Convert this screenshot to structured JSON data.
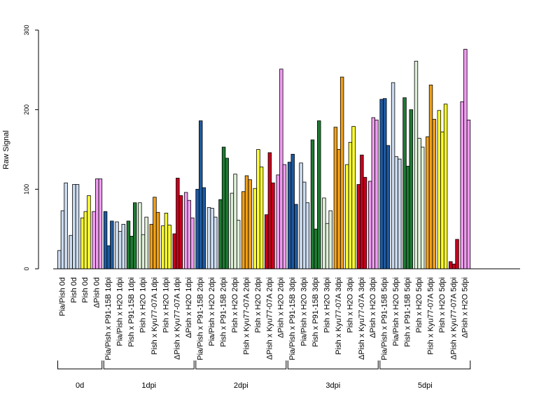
{
  "chart_data": {
    "type": "bar",
    "title": "",
    "xlabel": "",
    "ylabel": "Raw Signal",
    "ylim": [
      0,
      300
    ],
    "yticks": [
      0,
      100,
      200,
      300
    ],
    "grid": false,
    "legend": "none",
    "colors": {
      "Pia/Pish": "#ccdcf0",
      "Pish": "#ffff33",
      "ΔPish": "#f09cf0",
      "Pia/Pish x P91-15B": "#1f5aa0",
      "Pia/Pish x H2O": "#ccdcf0",
      "Pish x P91-15B": "#1e7a32",
      "Pish x H2O": "#dff0d8",
      "Pish x Kyu77-07A": "#f0a01a",
      "Pish x H2O yellow": "#ffff33",
      "ΔPish x Kyu77-07A": "#c8001e",
      "ΔPish x H2O": "#f09cf0"
    },
    "categories": [
      {
        "label": "Pia/Pish 0d",
        "color": "#ccdcf0",
        "values": [
          23,
          73,
          108
        ]
      },
      {
        "label": "Pish 0d",
        "color": "#ccdcf0",
        "values": [
          42,
          106,
          106
        ]
      },
      {
        "label": "Pish 0d",
        "color": "#ffff33",
        "values": [
          64,
          72,
          92
        ]
      },
      {
        "label": "ΔPish 0d",
        "color": "#f09cf0",
        "values": [
          72,
          113,
          113
        ]
      },
      {
        "label": "Pia/Pish x P91-15B 1dpi",
        "color": "#1f5aa0",
        "values": [
          72,
          29,
          60
        ]
      },
      {
        "label": "Pia/Pish x H2O 1dpi",
        "color": "#ccdcf0",
        "values": [
          59,
          47,
          56
        ]
      },
      {
        "label": "Pish x P91-15B 1dpi",
        "color": "#1e7a32",
        "values": [
          60,
          41,
          83
        ]
      },
      {
        "label": "Pish x H2O 1dpi",
        "color": "#dff0d8",
        "values": [
          83,
          43,
          65
        ]
      },
      {
        "label": "Pish x Kyu77-07A 1dpi",
        "color": "#f0a01a",
        "values": [
          56,
          90,
          71
        ]
      },
      {
        "label": "Pish x H2O 1dpi",
        "color": "#ffff33",
        "values": [
          54,
          70,
          55
        ]
      },
      {
        "label": "ΔPish x Kyu77-07A 1dpi",
        "color": "#c8001e",
        "values": [
          44,
          114,
          92
        ]
      },
      {
        "label": "ΔPish x H2O 1dpi",
        "color": "#f09cf0",
        "values": [
          96,
          86,
          64
        ]
      },
      {
        "label": "Pia/Pish x P91-15B 2dpi",
        "color": "#1f5aa0",
        "values": [
          100,
          186,
          102
        ]
      },
      {
        "label": "Pia/Pish x H2O 2dpi",
        "color": "#ccdcf0",
        "values": [
          77,
          76,
          65
        ]
      },
      {
        "label": "Pish x P91-15B 2dpi",
        "color": "#1e7a32",
        "values": [
          87,
          153,
          139
        ]
      },
      {
        "label": "Pish x H2O 2dpi",
        "color": "#dff0d8",
        "values": [
          95,
          119,
          61
        ]
      },
      {
        "label": "Pish x Kyu77-07A 2dpi",
        "color": "#f0a01a",
        "values": [
          97,
          117,
          112
        ]
      },
      {
        "label": "Pish x H2O 2dpi",
        "color": "#ffff33",
        "values": [
          101,
          150,
          128
        ]
      },
      {
        "label": "ΔPish x Kyu77-07A 2dpi",
        "color": "#c8001e",
        "values": [
          68,
          146,
          108
        ]
      },
      {
        "label": "ΔPish x H2O 2dpi",
        "color": "#f09cf0",
        "values": [
          118,
          251,
          131
        ]
      },
      {
        "label": "Pia/Pish x P91-15B 3dpi",
        "color": "#1f5aa0",
        "values": [
          134,
          144,
          81
        ]
      },
      {
        "label": "Pia/Pish x H2O 3dpi",
        "color": "#ccdcf0",
        "values": [
          133,
          109,
          83
        ]
      },
      {
        "label": "Pish x P91-15B 3dpi",
        "color": "#1e7a32",
        "values": [
          162,
          50,
          186
        ]
      },
      {
        "label": "Pish x H2O 3dpi",
        "color": "#dff0d8",
        "values": [
          89,
          57,
          73
        ]
      },
      {
        "label": "Pish x Kyu77-07A 3dpi",
        "color": "#f0a01a",
        "values": [
          178,
          150,
          241
        ]
      },
      {
        "label": "Pish x H2O 3dpi",
        "color": "#ffff33",
        "values": [
          131,
          159,
          179
        ]
      },
      {
        "label": "ΔPish x Kyu77-07A 3dpi",
        "color": "#c8001e",
        "values": [
          106,
          143,
          115
        ]
      },
      {
        "label": "ΔPish x H2O 3dpi",
        "color": "#f09cf0",
        "values": [
          110,
          190,
          187
        ]
      },
      {
        "label": "Pia/Pish x P91-15B 5dpi",
        "color": "#1f5aa0",
        "values": [
          213,
          214,
          155
        ]
      },
      {
        "label": "Pia/Pish x H2O 5dpi",
        "color": "#ccdcf0",
        "values": [
          234,
          141,
          138
        ]
      },
      {
        "label": "Pish x P91-15B 5dpi",
        "color": "#1e7a32",
        "values": [
          215,
          129,
          200
        ]
      },
      {
        "label": "Pish x H2O 5dpi",
        "color": "#dff0d8",
        "values": [
          261,
          164,
          153
        ]
      },
      {
        "label": "Pish x Kyu77-07A 5dpi",
        "color": "#f0a01a",
        "values": [
          166,
          231,
          188
        ]
      },
      {
        "label": "Pish x H2O 5dpi",
        "color": "#ffff33",
        "values": [
          199,
          172,
          207
        ]
      },
      {
        "label": "ΔPish x Kyu77-07A 5dpi",
        "color": "#c8001e",
        "values": [
          9,
          6,
          37
        ]
      },
      {
        "label": "ΔPish x H2O 5dpi",
        "color": "#f09cf0",
        "values": [
          210,
          276,
          187
        ]
      }
    ],
    "groups": [
      {
        "label": "0d",
        "first": 0,
        "last": 3
      },
      {
        "label": "1dpi",
        "first": 4,
        "last": 11
      },
      {
        "label": "2dpi",
        "first": 12,
        "last": 19
      },
      {
        "label": "3dpi",
        "first": 20,
        "last": 27
      },
      {
        "label": "5dpi",
        "first": 28,
        "last": 35
      }
    ]
  }
}
